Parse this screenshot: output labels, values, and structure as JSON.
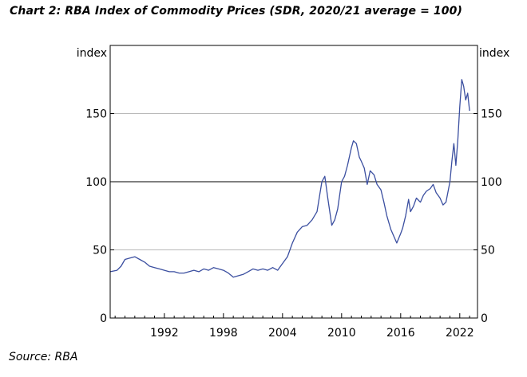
{
  "title": "Chart 2: RBA Index of Commodity Prices (SDR, 2020/21 average = 100)",
  "source": "Source: RBA",
  "chart_data": {
    "type": "line",
    "title": "Chart 2: RBA Index of Commodity Prices (SDR, 2020/21 average = 100)",
    "left_axis_label": "index",
    "right_axis_label": "index",
    "xlim": [
      1986.5,
      2023.8
    ],
    "ylim": [
      0,
      200
    ],
    "x_ticks": [
      1992,
      1998,
      2004,
      2010,
      2016,
      2022
    ],
    "y_ticks": [
      0,
      50,
      100,
      150
    ],
    "reference_line": 100,
    "grid": true,
    "line_color": "#3b4fa0",
    "series": [
      {
        "name": "RBA Index of Commodity Prices",
        "x": [
          1986.5,
          1987.2,
          1987.6,
          1988.0,
          1988.5,
          1989.0,
          1989.5,
          1990.0,
          1990.5,
          1991.0,
          1991.5,
          1992.0,
          1992.5,
          1993.0,
          1993.5,
          1994.0,
          1994.5,
          1995.0,
          1995.5,
          1996.0,
          1996.5,
          1997.0,
          1997.5,
          1998.0,
          1998.5,
          1999.0,
          1999.5,
          2000.0,
          2000.5,
          2001.0,
          2001.5,
          2002.0,
          2002.5,
          2003.0,
          2003.5,
          2004.0,
          2004.5,
          2005.0,
          2005.5,
          2006.0,
          2006.5,
          2007.0,
          2007.5,
          2008.0,
          2008.3,
          2008.6,
          2009.0,
          2009.3,
          2009.6,
          2010.0,
          2010.3,
          2010.6,
          2011.0,
          2011.2,
          2011.5,
          2011.8,
          2012.0,
          2012.3,
          2012.6,
          2012.9,
          2013.3,
          2013.6,
          2014.0,
          2014.3,
          2014.6,
          2015.0,
          2015.3,
          2015.6,
          2016.0,
          2016.2,
          2016.5,
          2016.8,
          2017.0,
          2017.3,
          2017.6,
          2018.0,
          2018.3,
          2018.6,
          2019.0,
          2019.3,
          2019.6,
          2020.0,
          2020.3,
          2020.6,
          2021.0,
          2021.2,
          2021.4,
          2021.6,
          2021.8,
          2022.0,
          2022.2,
          2022.4,
          2022.6,
          2022.8,
          2023.0
        ],
        "values": [
          34,
          35,
          38,
          43,
          44,
          45,
          43,
          41,
          38,
          37,
          36,
          35,
          34,
          34,
          33,
          33,
          34,
          35,
          34,
          36,
          35,
          37,
          36,
          35,
          33,
          30,
          31,
          32,
          34,
          36,
          35,
          36,
          35,
          37,
          35,
          40,
          45,
          55,
          63,
          67,
          68,
          72,
          78,
          100,
          104,
          88,
          68,
          72,
          80,
          100,
          104,
          112,
          125,
          130,
          128,
          118,
          115,
          110,
          98,
          108,
          105,
          98,
          94,
          85,
          75,
          65,
          60,
          55,
          62,
          66,
          75,
          87,
          78,
          82,
          88,
          85,
          90,
          93,
          95,
          98,
          92,
          88,
          83,
          85,
          100,
          115,
          128,
          112,
          130,
          155,
          175,
          170,
          160,
          165,
          152
        ]
      }
    ]
  }
}
